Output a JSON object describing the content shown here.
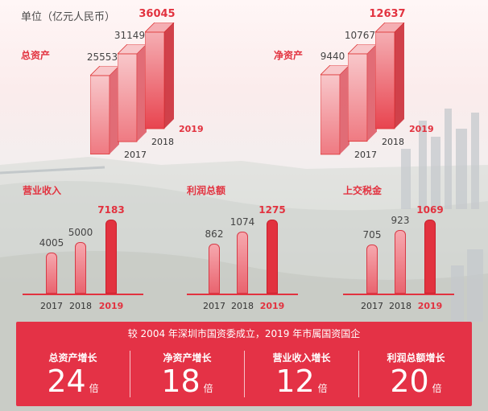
{
  "unit_label": "单位（亿元人民币）",
  "top_charts": [
    {
      "title": "总资产",
      "years": [
        "2017",
        "2018",
        "2019"
      ],
      "values": [
        25553,
        31149,
        36045
      ]
    },
    {
      "title": "净资产",
      "years": [
        "2017",
        "2018",
        "2019"
      ],
      "values": [
        9440,
        10767,
        12637
      ]
    }
  ],
  "bottom_charts": [
    {
      "title": "营业收入",
      "years": [
        "2017",
        "2018",
        "2019"
      ],
      "values": [
        4005,
        5000,
        7183
      ]
    },
    {
      "title": "利润总额",
      "years": [
        "2017",
        "2018",
        "2019"
      ],
      "values": [
        862,
        1074,
        1275
      ]
    },
    {
      "title": "上交税金",
      "years": [
        "2017",
        "2018",
        "2019"
      ],
      "values": [
        705,
        923,
        1069
      ]
    }
  ],
  "summary": {
    "caption": "较 2004 年深圳市国资委成立，2019 年市属国资国企",
    "items": [
      {
        "label": "总资产增长",
        "value": "24",
        "unit": "倍"
      },
      {
        "label": "净资产增长",
        "value": "18",
        "unit": "倍"
      },
      {
        "label": "营业收入增长",
        "value": "12",
        "unit": "倍"
      },
      {
        "label": "利润总额增长",
        "value": "20",
        "unit": "倍"
      }
    ]
  },
  "chart_data": [
    {
      "type": "bar",
      "title": "总资产",
      "categories": [
        "2017",
        "2018",
        "2019"
      ],
      "values": [
        25553,
        31149,
        36045
      ]
    },
    {
      "type": "bar",
      "title": "净资产",
      "categories": [
        "2017",
        "2018",
        "2019"
      ],
      "values": [
        9440,
        10767,
        12637
      ]
    },
    {
      "type": "bar",
      "title": "营业收入",
      "categories": [
        "2017",
        "2018",
        "2019"
      ],
      "values": [
        4005,
        5000,
        7183
      ]
    },
    {
      "type": "bar",
      "title": "利润总额",
      "categories": [
        "2017",
        "2018",
        "2019"
      ],
      "values": [
        862,
        1074,
        1275
      ]
    },
    {
      "type": "bar",
      "title": "上交税金",
      "categories": [
        "2017",
        "2018",
        "2019"
      ],
      "values": [
        705,
        923,
        1069
      ]
    }
  ]
}
